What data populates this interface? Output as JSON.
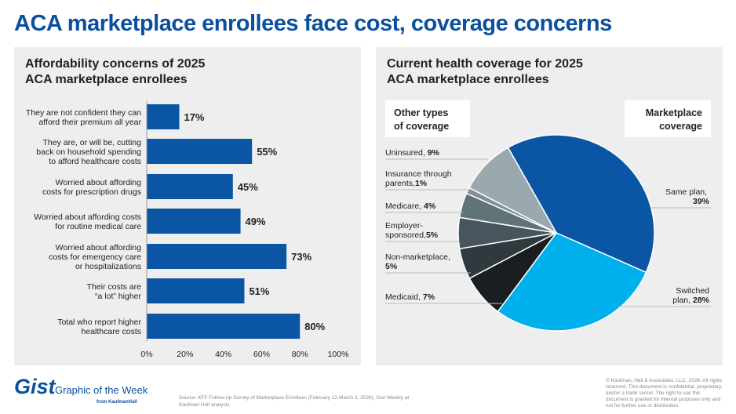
{
  "title": "ACA marketplace enrollees face cost, coverage concerns",
  "footer": {
    "brand": "Gist",
    "tagline": "Graphic of the Week",
    "from": "from KaufmanHall",
    "source": "Source: KFF Follow-Up Survey of Marketplace Enrollees (February 12-March 2, 2026); Gist Weekly at Kaufman Hall analysis.",
    "copyright": "© Kaufman, Hall & Associates, LLC, 2026. All rights reserved. This document is confidential, proprietary, and/or a trade secret. The right to use this document is granted for internal purposes only and not for further use or distribution."
  },
  "colors": {
    "accent": "#0b4f9e",
    "bar": "#0b56a4"
  },
  "chart_data": [
    {
      "type": "bar",
      "orientation": "horizontal",
      "title": "Affordability concerns of 2025\nACA marketplace enrollees",
      "categories": [
        "They are not confident they can\nafford their premium all year",
        "They are, or will be, cutting\nback on household spending\nto afford healthcare costs",
        "Worried about affording\ncosts for prescription drugs",
        "Worried about affording costs\nfor routine medical care",
        "Worried about affording\ncosts for emergency care\nor hospitalizations",
        "Their costs are\n“a lot” higher",
        "Total who report higher\nhealthcare costs"
      ],
      "values": [
        17,
        55,
        45,
        49,
        73,
        51,
        80
      ],
      "data_labels": [
        "17%",
        "55%",
        "45%",
        "49%",
        "73%",
        "51%",
        "80%"
      ],
      "xlim": [
        0,
        100
      ],
      "ticks": [
        "0%",
        "20%",
        "40%",
        "60%",
        "80%",
        "100%"
      ],
      "grid": false
    },
    {
      "type": "pie",
      "title": "Current health coverage for 2025\nACA marketplace enrollees",
      "group_labels": {
        "other": "Other types\nof coverage",
        "marketplace": "Marketplace\ncoverage"
      },
      "slices": [
        {
          "label": "Same plan,",
          "value": 39,
          "value_label": "39%",
          "color": "#0b56a4",
          "group": "marketplace"
        },
        {
          "label": "Switched\nplan,",
          "value": 28,
          "value_label": "28%",
          "color": "#00b0ec",
          "group": "marketplace"
        },
        {
          "label": "Medicaid,",
          "value": 7,
          "value_label": "7%",
          "color": "#1a1e20",
          "group": "other"
        },
        {
          "label": "Non-marketplace,",
          "value": 5,
          "value_label": "5%",
          "color": "#30393d",
          "group": "other"
        },
        {
          "label": "Employer-\nsponsored,",
          "value": 5,
          "value_label": "5%",
          "color": "#47565c",
          "group": "other"
        },
        {
          "label": "Medicare,",
          "value": 4,
          "value_label": "4%",
          "color": "#5f7379",
          "group": "other"
        },
        {
          "label": "Insurance through\nparents,",
          "value": 1,
          "value_label": "1%",
          "color": "#7d9096",
          "group": "other"
        },
        {
          "label": "Uninsured,",
          "value": 9,
          "value_label": "9%",
          "color": "#9aa9ae",
          "group": "other"
        }
      ]
    }
  ]
}
